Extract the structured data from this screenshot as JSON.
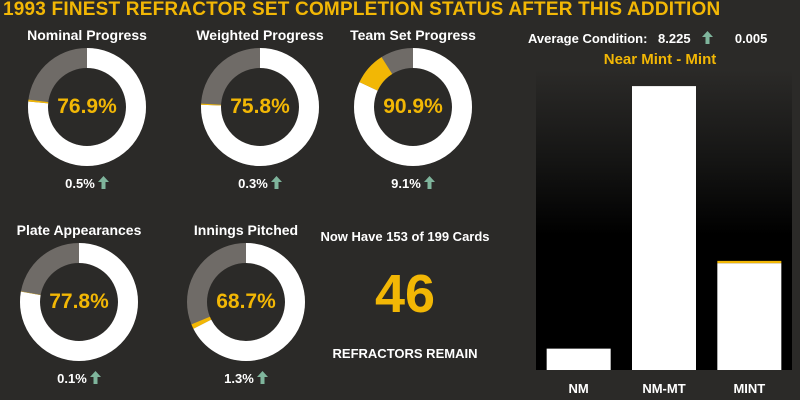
{
  "title": "1993 FINEST REFRACTOR SET COMPLETION STATUS AFTER THIS ADDITION",
  "colors": {
    "accent": "#f2b705",
    "remaining": "#6f6b67",
    "complete": "#ffffff",
    "up_arrow": "#7fb59c",
    "background": "#2b2a28"
  },
  "gauges": [
    {
      "label": "Nominal Progress",
      "value": 76.9,
      "value_text": "76.9%",
      "delta": 0.5,
      "delta_text": "0.5%",
      "trend_icon": "up-arrow-icon"
    },
    {
      "label": "Weighted Progress",
      "value": 75.8,
      "value_text": "75.8%",
      "delta": 0.3,
      "delta_text": "0.3%",
      "trend_icon": "up-arrow-icon"
    },
    {
      "label": "Team Set Progress",
      "value": 90.9,
      "value_text": "90.9%",
      "delta": 9.1,
      "delta_text": "9.1%",
      "trend_icon": "up-arrow-icon"
    },
    {
      "label": "Plate Appearances",
      "value": 77.8,
      "value_text": "77.8%",
      "delta": 0.1,
      "delta_text": "0.1%",
      "trend_icon": "up-arrow-icon"
    },
    {
      "label": "Innings Pitched",
      "value": 68.7,
      "value_text": "68.7%",
      "delta": 1.3,
      "delta_text": "1.3%",
      "trend_icon": "up-arrow-icon"
    }
  ],
  "cards": {
    "summary": "Now Have 153 of 199 Cards",
    "have": 153,
    "total": 199,
    "remaining": "46",
    "remaining_label": "REFRACTORS REMAIN"
  },
  "condition": {
    "label": "Average Condition:",
    "value": "8.225",
    "delta": "0.005",
    "grade": "Near Mint - Mint"
  },
  "chart_data": {
    "type": "bar",
    "categories": [
      "NM",
      "NM-MT",
      "MINT"
    ],
    "values": [
      14,
      186,
      70
    ],
    "added": [
      0,
      0,
      1.5
    ],
    "ylim": [
      0,
      190
    ],
    "title": "",
    "xlabel": "",
    "ylabel": "",
    "grid": false,
    "legend": "none"
  }
}
